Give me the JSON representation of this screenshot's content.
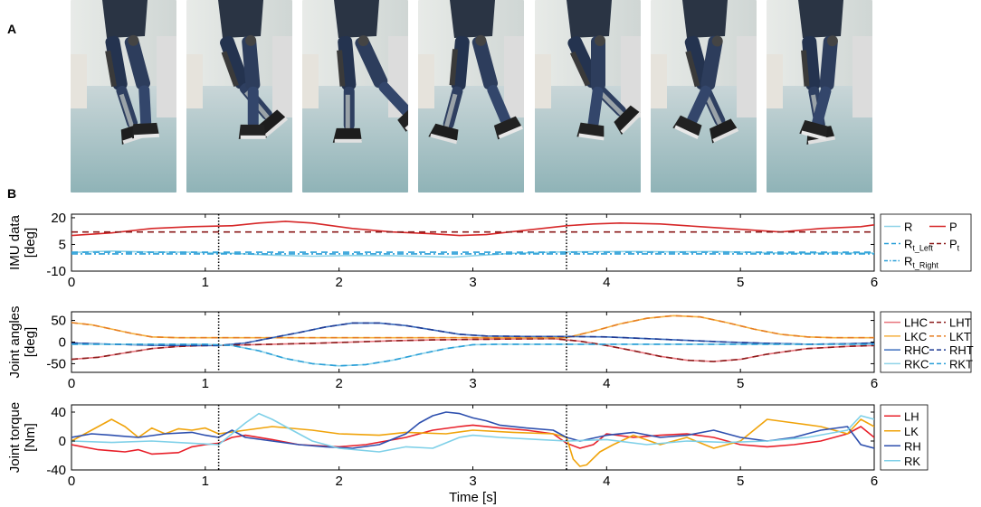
{
  "panel_a_label": "A",
  "panel_b_label": "B",
  "photos": [
    {
      "name": "gait-frame-1"
    },
    {
      "name": "gait-frame-2"
    },
    {
      "name": "gait-frame-3"
    },
    {
      "name": "gait-frame-4"
    },
    {
      "name": "gait-frame-5"
    },
    {
      "name": "gait-frame-6"
    },
    {
      "name": "gait-frame-7"
    }
  ],
  "chart_data": [
    {
      "type": "line",
      "ylabel": [
        "IMU data",
        "[deg]"
      ],
      "xlim": [
        0,
        6
      ],
      "ylim": [
        -10,
        22
      ],
      "yticks": [
        20,
        5,
        -10
      ],
      "xticks": [
        0,
        1,
        2,
        3,
        4,
        5,
        6
      ],
      "vlines": [
        1.1,
        3.7
      ],
      "legend": {
        "columns": 2,
        "placement": "right"
      },
      "series": [
        {
          "name": "R",
          "color": "#8fd3e8",
          "dash": "solid",
          "x": [
            0,
            0.3,
            0.6,
            0.9,
            1.2,
            1.5,
            1.8,
            2.1,
            2.4,
            2.7,
            2.85,
            3.0,
            3.3,
            3.6,
            3.9,
            4.2,
            4.5,
            4.8,
            5.1,
            5.4,
            5.7,
            6.0
          ],
          "y": [
            0.5,
            1.3,
            0.7,
            0.6,
            0,
            -1,
            -1.6,
            -1.2,
            -1.3,
            -1.8,
            -2.1,
            -1.4,
            0,
            0.7,
            0.9,
            1,
            0.8,
            1,
            0.5,
            0,
            0.4,
            0.1
          ]
        },
        {
          "name": "R",
          "sub": "t_Left",
          "color": "#2a9fd8",
          "dash": "7,5",
          "x": [
            0,
            6
          ],
          "y": [
            0.6,
            0.6
          ]
        },
        {
          "name": "R",
          "sub": "t_Right",
          "color": "#2a9fd8",
          "dash": "7,3,2,3",
          "x": [
            0,
            6
          ],
          "y": [
            -0.3,
            -0.3
          ]
        },
        {
          "name": "P",
          "color": "#d62728",
          "dash": "solid",
          "x": [
            0,
            0.3,
            0.6,
            0.9,
            1.2,
            1.4,
            1.6,
            1.8,
            2.1,
            2.4,
            2.7,
            2.9,
            3.1,
            3.4,
            3.7,
            3.9,
            4.1,
            4.4,
            4.7,
            5.0,
            5.3,
            5.6,
            5.9,
            6.0
          ],
          "y": [
            10,
            11.5,
            14,
            15,
            15.5,
            17,
            18,
            17,
            14,
            12,
            11,
            10,
            10.5,
            13,
            15.5,
            16.5,
            17,
            16.5,
            15,
            13.5,
            12,
            14,
            15,
            16
          ]
        },
        {
          "name": "P",
          "sub": "t",
          "color": "#8b1a1a",
          "dash": "7,5",
          "x": [
            0,
            6
          ],
          "y": [
            12,
            12
          ]
        }
      ]
    },
    {
      "type": "line",
      "ylabel": [
        "Joint angles",
        "[deg]"
      ],
      "xlim": [
        0,
        6
      ],
      "ylim": [
        -70,
        70
      ],
      "yticks": [
        50,
        0,
        -50
      ],
      "xticks": [
        0,
        1,
        2,
        3,
        4,
        5,
        6
      ],
      "vlines": [
        1.1,
        3.7
      ],
      "legend": {
        "columns": 2,
        "placement": "right"
      },
      "series": [
        {
          "name": "LHC",
          "color": "#e8747c",
          "dash": "solid",
          "x": [
            0,
            0.2,
            0.4,
            0.6,
            0.8,
            1.0,
            1.2,
            1.5,
            1.8,
            2.1,
            2.4,
            2.7,
            3.0,
            3.3,
            3.6,
            3.8,
            4.0,
            4.2,
            4.4,
            4.6,
            4.8,
            5.0,
            5.2,
            5.5,
            5.8,
            6.0
          ],
          "y": [
            -40,
            -35,
            -25,
            -15,
            -10,
            -8,
            -7,
            -5,
            -3,
            0,
            3,
            5,
            6,
            7,
            8,
            2,
            -8,
            -20,
            -33,
            -42,
            -45,
            -40,
            -28,
            -15,
            -10,
            -8
          ]
        },
        {
          "name": "LKC",
          "color": "#f5b041",
          "dash": "solid",
          "x": [
            0,
            0.15,
            0.3,
            0.45,
            0.6,
            0.8,
            1.0,
            1.5,
            2.0,
            2.5,
            3.0,
            3.5,
            3.7,
            3.9,
            4.1,
            4.3,
            4.5,
            4.7,
            4.9,
            5.1,
            5.3,
            5.5,
            5.7,
            6.0
          ],
          "y": [
            45,
            40,
            30,
            20,
            12,
            10,
            10,
            10,
            10,
            10,
            10,
            10,
            10,
            25,
            42,
            55,
            61,
            58,
            45,
            30,
            18,
            12,
            10,
            10
          ]
        },
        {
          "name": "RHC",
          "color": "#3e6fbf",
          "dash": "solid",
          "x": [
            0,
            0.3,
            0.6,
            0.9,
            1.1,
            1.3,
            1.5,
            1.7,
            1.9,
            2.1,
            2.3,
            2.5,
            2.7,
            2.9,
            3.1,
            3.4,
            3.7,
            4.0,
            4.3,
            4.6,
            4.9,
            5.2,
            5.5,
            5.8,
            6.0
          ],
          "y": [
            -2,
            -5,
            -7,
            -8,
            -8,
            -2,
            10,
            22,
            35,
            44,
            44,
            38,
            28,
            18,
            14,
            13,
            13,
            12,
            8,
            4,
            0,
            -3,
            -5,
            -4,
            -2
          ]
        },
        {
          "name": "RKC",
          "color": "#8fd3e8",
          "dash": "solid",
          "x": [
            0,
            0.5,
            1.0,
            1.2,
            1.4,
            1.6,
            1.8,
            2.0,
            2.2,
            2.4,
            2.6,
            2.8,
            3.0,
            3.2,
            3.5,
            4.0,
            4.5,
            5.0,
            5.5,
            6.0
          ],
          "y": [
            -5,
            -5,
            -5,
            -8,
            -20,
            -38,
            -50,
            -55,
            -52,
            -42,
            -28,
            -15,
            -6,
            -5,
            -5,
            -5,
            -5,
            -5,
            -5,
            -5
          ]
        },
        {
          "name": "LHT",
          "color": "#8b1a1a",
          "dash": "7,5",
          "x": [
            0,
            0.2,
            0.4,
            0.6,
            0.8,
            1.0,
            1.2,
            1.5,
            1.8,
            2.1,
            2.4,
            2.7,
            3.0,
            3.3,
            3.6,
            3.8,
            4.0,
            4.2,
            4.4,
            4.6,
            4.8,
            5.0,
            5.2,
            5.5,
            5.8,
            6.0
          ],
          "y": [
            -40,
            -35,
            -25,
            -15,
            -10,
            -8,
            -7,
            -5,
            -3,
            0,
            3,
            5,
            6,
            7,
            8,
            2,
            -8,
            -20,
            -33,
            -42,
            -45,
            -40,
            -28,
            -15,
            -10,
            -8
          ]
        },
        {
          "name": "LKT",
          "color": "#e67e22",
          "dash": "7,5",
          "x": [
            0,
            0.15,
            0.3,
            0.45,
            0.6,
            0.8,
            1.0,
            1.5,
            2.0,
            2.5,
            3.0,
            3.5,
            3.7,
            3.9,
            4.1,
            4.3,
            4.5,
            4.7,
            4.9,
            5.1,
            5.3,
            5.5,
            5.7,
            6.0
          ],
          "y": [
            45,
            40,
            30,
            20,
            12,
            10,
            10,
            10,
            10,
            10,
            10,
            10,
            10,
            25,
            42,
            55,
            61,
            58,
            45,
            30,
            18,
            12,
            10,
            10
          ]
        },
        {
          "name": "RHT",
          "color": "#1f3a93",
          "dash": "7,5",
          "x": [
            0,
            0.3,
            0.6,
            0.9,
            1.1,
            1.3,
            1.5,
            1.7,
            1.9,
            2.1,
            2.3,
            2.5,
            2.7,
            2.9,
            3.1,
            3.4,
            3.7,
            4.0,
            4.3,
            4.6,
            4.9,
            5.2,
            5.5,
            5.8,
            6.0
          ],
          "y": [
            -2,
            -5,
            -7,
            -8,
            -8,
            -2,
            10,
            22,
            35,
            44,
            44,
            38,
            28,
            18,
            14,
            13,
            13,
            12,
            8,
            4,
            0,
            -3,
            -5,
            -4,
            -2
          ]
        },
        {
          "name": "RKT",
          "color": "#2a9fd8",
          "dash": "7,5",
          "x": [
            0,
            0.5,
            1.0,
            1.2,
            1.4,
            1.6,
            1.8,
            2.0,
            2.2,
            2.4,
            2.6,
            2.8,
            3.0,
            3.2,
            3.5,
            4.0,
            4.5,
            5.0,
            5.5,
            6.0
          ],
          "y": [
            -5,
            -5,
            -5,
            -8,
            -20,
            -38,
            -50,
            -55,
            -52,
            -42,
            -28,
            -15,
            -6,
            -5,
            -5,
            -5,
            -5,
            -5,
            -5,
            -5
          ]
        }
      ]
    },
    {
      "type": "line",
      "xlabel": "Time [s]",
      "ylabel": [
        "Joint torque",
        "[Nm]"
      ],
      "xlim": [
        0,
        6
      ],
      "ylim": [
        -40,
        50
      ],
      "yticks": [
        40,
        0,
        -40
      ],
      "xticks": [
        0,
        1,
        2,
        3,
        4,
        5,
        6
      ],
      "vlines": [
        1.1,
        3.7
      ],
      "legend": {
        "columns": 1,
        "placement": "right"
      },
      "series": [
        {
          "name": "LH",
          "color": "#e8202a",
          "dash": "solid",
          "x": [
            0,
            0.2,
            0.4,
            0.5,
            0.6,
            0.8,
            0.9,
            1.0,
            1.1,
            1.2,
            1.3,
            1.5,
            1.7,
            2.0,
            2.2,
            2.5,
            2.7,
            2.9,
            3.0,
            3.2,
            3.4,
            3.6,
            3.7,
            3.8,
            3.9,
            4.0,
            4.2,
            4.4,
            4.6,
            4.8,
            5.0,
            5.2,
            5.4,
            5.6,
            5.8,
            5.9,
            6.0
          ],
          "y": [
            -5,
            -12,
            -15,
            -12,
            -18,
            -16,
            -8,
            -5,
            -3,
            5,
            8,
            2,
            -5,
            -8,
            -5,
            5,
            15,
            20,
            22,
            18,
            15,
            10,
            -3,
            -10,
            -5,
            10,
            5,
            8,
            10,
            5,
            -5,
            -8,
            -5,
            0,
            10,
            20,
            5
          ]
        },
        {
          "name": "LK",
          "color": "#f0a30a",
          "dash": "solid",
          "x": [
            0,
            0.15,
            0.3,
            0.4,
            0.5,
            0.6,
            0.7,
            0.8,
            0.9,
            1.0,
            1.1,
            1.3,
            1.5,
            1.8,
            2.0,
            2.3,
            2.5,
            2.8,
            3.0,
            3.3,
            3.6,
            3.7,
            3.75,
            3.8,
            3.85,
            3.95,
            4.05,
            4.2,
            4.4,
            4.6,
            4.8,
            5.0,
            5.2,
            5.4,
            5.6,
            5.8,
            5.9,
            6.0
          ],
          "y": [
            0,
            15,
            30,
            20,
            5,
            18,
            10,
            17,
            15,
            18,
            10,
            15,
            20,
            15,
            10,
            8,
            12,
            10,
            15,
            12,
            10,
            5,
            -25,
            -35,
            -33,
            -15,
            -5,
            8,
            -5,
            5,
            -10,
            0,
            30,
            25,
            20,
            10,
            30,
            20
          ]
        },
        {
          "name": "RH",
          "color": "#2d4fae",
          "dash": "solid",
          "x": [
            0,
            0.15,
            0.3,
            0.5,
            0.7,
            0.9,
            1.0,
            1.1,
            1.2,
            1.3,
            1.5,
            1.7,
            1.9,
            2.1,
            2.3,
            2.5,
            2.6,
            2.7,
            2.8,
            2.9,
            3.0,
            3.1,
            3.2,
            3.4,
            3.6,
            3.7,
            3.8,
            4.0,
            4.2,
            4.4,
            4.6,
            4.8,
            5.0,
            5.2,
            5.4,
            5.6,
            5.8,
            5.9,
            6.0
          ],
          "y": [
            5,
            10,
            8,
            5,
            10,
            12,
            8,
            5,
            15,
            5,
            0,
            -5,
            -8,
            -10,
            -5,
            10,
            25,
            35,
            40,
            38,
            32,
            28,
            22,
            18,
            15,
            5,
            0,
            8,
            12,
            5,
            8,
            15,
            5,
            0,
            5,
            15,
            20,
            -5,
            -10
          ]
        },
        {
          "name": "RK",
          "color": "#7fd0e8",
          "dash": "solid",
          "x": [
            0,
            0.3,
            0.6,
            0.9,
            1.1,
            1.3,
            1.4,
            1.5,
            1.6,
            1.7,
            1.8,
            2.0,
            2.3,
            2.5,
            2.7,
            2.9,
            3.0,
            3.2,
            3.5,
            3.7,
            4.0,
            4.3,
            4.6,
            4.9,
            5.2,
            5.5,
            5.8,
            5.9,
            6.0
          ],
          "y": [
            0,
            -2,
            0,
            -3,
            -5,
            25,
            38,
            30,
            20,
            10,
            0,
            -10,
            -15,
            -8,
            -10,
            5,
            8,
            5,
            2,
            0,
            2,
            -5,
            0,
            -2,
            0,
            5,
            15,
            35,
            30
          ]
        }
      ]
    }
  ]
}
